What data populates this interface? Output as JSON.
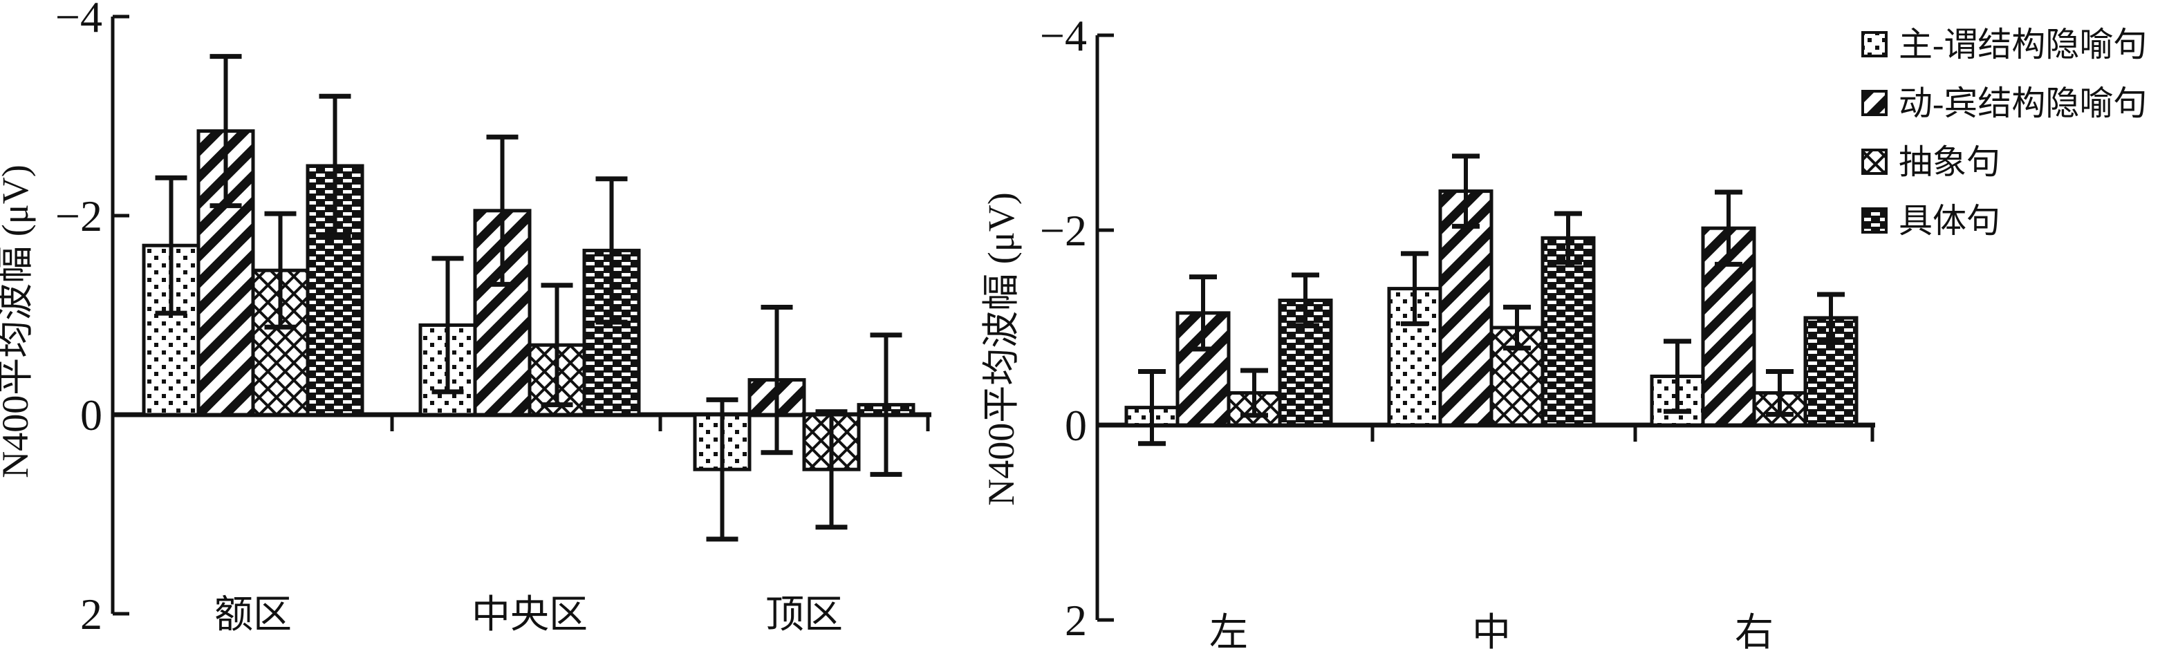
{
  "figure": {
    "background": "#ffffff",
    "ink": "#111111",
    "description": "Two grouped bar charts of N400 mean amplitude with error bars"
  },
  "chart_data": [
    {
      "type": "bar",
      "title": "",
      "xlabel": "",
      "ylabel": "N400平均波幅 (μV)",
      "ylim": [
        -4,
        2
      ],
      "y_axis_inverted": true,
      "grid": false,
      "yticks": [
        -4,
        -2,
        0,
        2
      ],
      "ytick_labels": [
        "−4",
        "−2",
        "0",
        "2"
      ],
      "categories": [
        "额区",
        "中央区",
        "顶区"
      ],
      "series": [
        {
          "name": "主-谓结构隐喻句",
          "pattern": "dots",
          "values": [
            -1.7,
            -0.9,
            0.55
          ],
          "errors": [
            0.68,
            0.67,
            0.7
          ]
        },
        {
          "name": "动-宾结构隐喻句",
          "pattern": "stripes",
          "values": [
            -2.85,
            -2.05,
            -0.35
          ],
          "errors": [
            0.75,
            0.74,
            0.73
          ]
        },
        {
          "name": "抽象句",
          "pattern": "cross",
          "values": [
            -1.45,
            -0.7,
            0.55
          ],
          "errors": [
            0.57,
            0.6,
            0.58
          ]
        },
        {
          "name": "具体句",
          "pattern": "dense",
          "values": [
            -2.5,
            -1.65,
            -0.1
          ],
          "errors": [
            0.7,
            0.72,
            0.7
          ]
        }
      ]
    },
    {
      "type": "bar",
      "title": "",
      "xlabel": "",
      "ylabel": "N400平均波幅 (μV)",
      "ylim": [
        -4,
        2
      ],
      "y_axis_inverted": true,
      "grid": false,
      "yticks": [
        -4,
        -2,
        0,
        2
      ],
      "ytick_labels": [
        "−4",
        "−2",
        "0",
        "2"
      ],
      "categories": [
        "左",
        "中",
        "右"
      ],
      "series": [
        {
          "name": "主-谓结构隐喻句",
          "pattern": "dots",
          "values": [
            -0.18,
            -1.4,
            -0.5
          ],
          "errors": [
            0.37,
            0.36,
            0.36
          ]
        },
        {
          "name": "动-宾结构隐喻句",
          "pattern": "stripes",
          "values": [
            -1.15,
            -2.4,
            -2.02
          ],
          "errors": [
            0.37,
            0.36,
            0.37
          ]
        },
        {
          "name": "抽象句",
          "pattern": "cross",
          "values": [
            -0.33,
            -1.0,
            -0.33
          ],
          "errors": [
            0.23,
            0.21,
            0.22
          ]
        },
        {
          "name": "具体句",
          "pattern": "dense",
          "values": [
            -1.28,
            -1.92,
            -1.1
          ],
          "errors": [
            0.26,
            0.25,
            0.24
          ]
        }
      ]
    }
  ],
  "legend": {
    "position": "top-right",
    "items_from": "chart_data.0.series"
  }
}
